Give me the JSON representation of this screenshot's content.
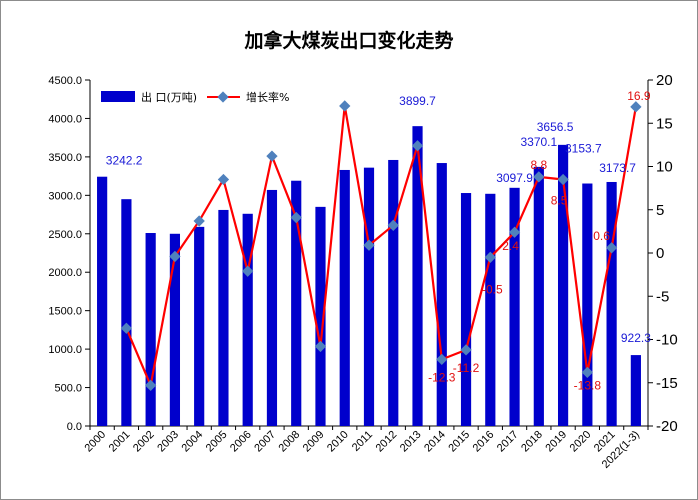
{
  "chart_data": {
    "type": "bar",
    "title": "加拿大煤炭出口变化走势",
    "categories": [
      "2000",
      "2001",
      "2002",
      "2003",
      "2004",
      "2005",
      "2006",
      "2007",
      "2008",
      "2009",
      "2010",
      "2011",
      "2012",
      "2013",
      "2014",
      "2015",
      "2016",
      "2017",
      "2018",
      "2019",
      "2020",
      "2021",
      "2022(1-3)"
    ],
    "series": [
      {
        "name": "出 口(万吨)",
        "type": "bar",
        "axis": "left",
        "color": "#0000cc",
        "values": [
          3242.2,
          2950,
          2510,
          2500,
          2590,
          2810,
          2760,
          3070,
          3190,
          2850,
          3330,
          3360,
          3460,
          3899.7,
          3420,
          3030,
          3020,
          3097.9,
          3370.1,
          3656.5,
          3153.7,
          3173.7,
          922.3
        ]
      },
      {
        "name": "增长率%",
        "type": "line",
        "axis": "right",
        "color": "#ff0000",
        "marker_color": "#4f81bd",
        "values": [
          null,
          -8.7,
          -15.3,
          -0.4,
          3.7,
          8.5,
          -2.1,
          11.2,
          4.1,
          -10.8,
          17.0,
          0.9,
          3.2,
          12.4,
          -12.3,
          -11.2,
          -0.5,
          2.4,
          8.8,
          8.5,
          -13.8,
          0.6,
          16.9
        ]
      }
    ],
    "bar_labels": [
      {
        "index": 0,
        "text": "3242.2"
      },
      {
        "index": 13,
        "text": "3899.7"
      },
      {
        "index": 17,
        "text": "3097.9"
      },
      {
        "index": 18,
        "text": "3370.1"
      },
      {
        "index": 19,
        "text": "3656.5"
      },
      {
        "index": 20,
        "text": "3153.7"
      },
      {
        "index": 21,
        "text": "3173.7"
      },
      {
        "index": 22,
        "text": "922.3"
      }
    ],
    "line_labels": [
      {
        "index": 14,
        "text": "-12.3"
      },
      {
        "index": 15,
        "text": "-11.2"
      },
      {
        "index": 16,
        "text": "-0.5"
      },
      {
        "index": 17,
        "text": "2.4"
      },
      {
        "index": 18,
        "text": "8.8"
      },
      {
        "index": 19,
        "text": "8.5"
      },
      {
        "index": 20,
        "text": "-13.8"
      },
      {
        "index": 21,
        "text": "0.6"
      },
      {
        "index": 22,
        "text": "16.9"
      }
    ],
    "y_left": {
      "min": 0,
      "max": 4500,
      "step": 500,
      "tick_labels": [
        "0.0",
        "500.0",
        "1000.0",
        "1500.0",
        "2000.0",
        "2500.0",
        "3000.0",
        "3500.0",
        "4000.0",
        "4500.0"
      ]
    },
    "y_right": {
      "min": -20,
      "max": 20,
      "step": 5,
      "tick_labels": [
        "-20",
        "-15",
        "-10",
        "-5",
        "0",
        "5",
        "10",
        "15",
        "20"
      ]
    },
    "grid": false,
    "legend": "top-left"
  }
}
